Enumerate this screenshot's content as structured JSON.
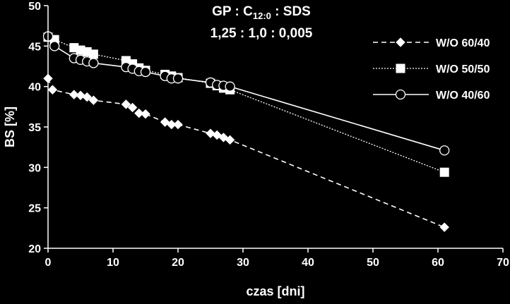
{
  "chart_data": {
    "type": "line",
    "title": {
      "main": "GP : C",
      "subscript": "12:0",
      "after": " : SDS"
    },
    "subtitle": "1,25 : 1,0 : 0,005",
    "xlabel": "czas [dni]",
    "ylabel": "BS [%]",
    "xlim": [
      0,
      70
    ],
    "ylim": [
      20,
      50
    ],
    "x_ticks": [
      "0",
      "10",
      "20",
      "30",
      "40",
      "50",
      "60",
      "70"
    ],
    "y_ticks": [
      "20",
      "25",
      "30",
      "35",
      "40",
      "45",
      "50"
    ],
    "grid": false,
    "legend_position": "right",
    "series": [
      {
        "name": "W/O 60/40",
        "color": "#ffffff",
        "line_style": "dashed",
        "marker": "diamond",
        "x": [
          0,
          0.7,
          4,
          5,
          6,
          7,
          12,
          13,
          14,
          15,
          18,
          19,
          20,
          25,
          26,
          27,
          28,
          61
        ],
        "y": [
          41.0,
          39.6,
          39.0,
          38.9,
          38.7,
          38.3,
          37.8,
          37.4,
          36.7,
          36.6,
          35.6,
          35.3,
          35.3,
          34.2,
          34.0,
          33.7,
          33.4,
          22.6
        ]
      },
      {
        "name": "W/O 50/50",
        "color": "#ffffff",
        "line_style": "dotted",
        "marker": "square",
        "x": [
          0,
          1,
          4,
          5,
          6,
          7,
          12,
          13,
          14,
          15,
          18,
          19,
          20,
          25,
          26,
          27,
          28,
          61
        ],
        "y": [
          46.1,
          45.8,
          44.8,
          44.5,
          44.3,
          44.0,
          43.2,
          42.8,
          42.3,
          42.0,
          41.5,
          41.3,
          41.1,
          40.4,
          40.1,
          39.8,
          39.6,
          29.4
        ]
      },
      {
        "name": "W/O 40/60",
        "color": "#ffffff",
        "line_style": "solid",
        "marker": "circle",
        "x": [
          0,
          1,
          4,
          5,
          6,
          7,
          12,
          13,
          14,
          15,
          18,
          19,
          20,
          25,
          26,
          27,
          28,
          61
        ],
        "y": [
          46.2,
          45.0,
          43.5,
          43.3,
          43.1,
          42.9,
          42.4,
          42.2,
          41.9,
          41.8,
          41.3,
          41.0,
          41.0,
          40.5,
          40.2,
          40.1,
          40.0,
          32.1
        ]
      }
    ]
  }
}
